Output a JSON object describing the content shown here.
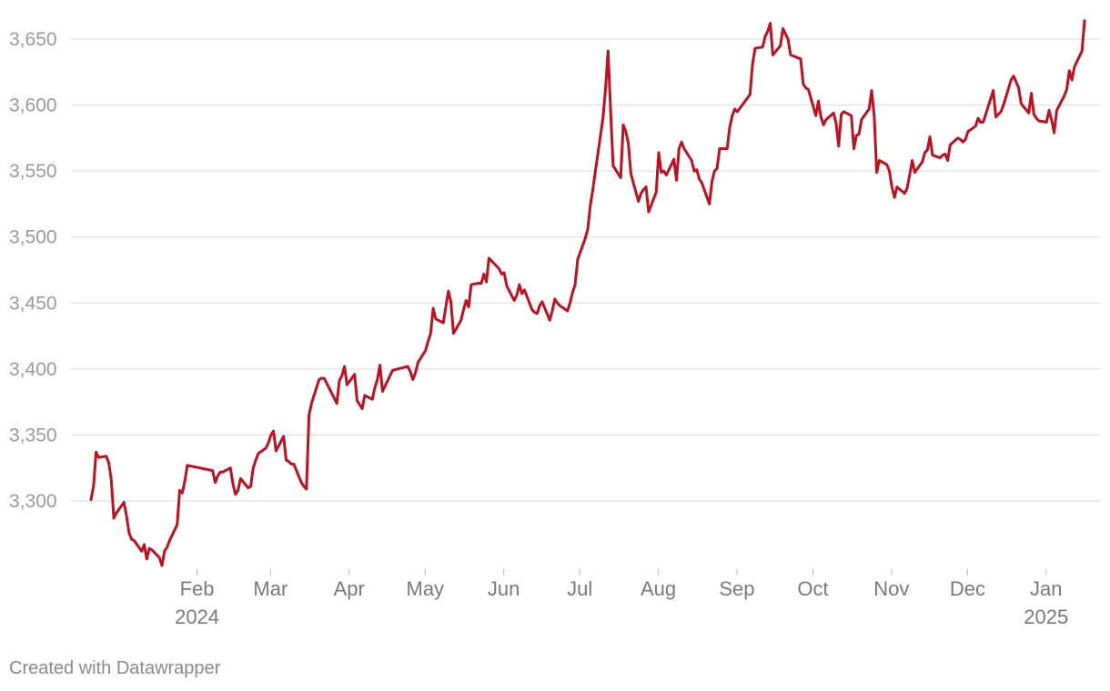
{
  "chart_data": {
    "type": "line",
    "title": "",
    "xlabel": "",
    "ylabel": "",
    "ylim": [
      3250,
      3665
    ],
    "y_ticks": [
      3300,
      3350,
      3400,
      3450,
      3500,
      3550,
      3600,
      3650
    ],
    "y_tick_labels": [
      "3,300",
      "3,350",
      "3,400",
      "3,450",
      "3,500",
      "3,550",
      "3,600",
      "3,650"
    ],
    "x_range": [
      "2024-01-11",
      "2025-01-24"
    ],
    "x_ticks": [
      {
        "date": "2024-02-01",
        "label": "Feb",
        "year": "2024"
      },
      {
        "date": "2024-03-01",
        "label": "Mar",
        "year": ""
      },
      {
        "date": "2024-04-01",
        "label": "Apr",
        "year": ""
      },
      {
        "date": "2024-05-01",
        "label": "May",
        "year": ""
      },
      {
        "date": "2024-06-01",
        "label": "Jun",
        "year": ""
      },
      {
        "date": "2024-07-01",
        "label": "Jul",
        "year": ""
      },
      {
        "date": "2024-08-01",
        "label": "Aug",
        "year": ""
      },
      {
        "date": "2024-09-01",
        "label": "Sep",
        "year": ""
      },
      {
        "date": "2024-10-01",
        "label": "Oct",
        "year": ""
      },
      {
        "date": "2024-11-01",
        "label": "Nov",
        "year": ""
      },
      {
        "date": "2024-12-01",
        "label": "Dec",
        "year": ""
      },
      {
        "date": "2025-01-01",
        "label": "Jan",
        "year": "2025"
      }
    ],
    "grid": true,
    "legend": "none",
    "series": [
      {
        "color": "#c0101f",
        "points": [
          [
            "2024-01-02",
            3301
          ],
          [
            "2024-01-03",
            3311
          ],
          [
            "2024-01-04",
            3337
          ],
          [
            "2024-01-05",
            3333
          ],
          [
            "2024-01-08",
            3334
          ],
          [
            "2024-01-09",
            3329
          ],
          [
            "2024-01-10",
            3316
          ],
          [
            "2024-01-11",
            3287
          ],
          [
            "2024-01-12",
            3291
          ],
          [
            "2024-01-15",
            3299
          ],
          [
            "2024-01-16",
            3289
          ],
          [
            "2024-01-17",
            3276
          ],
          [
            "2024-01-18",
            3271
          ],
          [
            "2024-01-19",
            3270
          ],
          [
            "2024-01-22",
            3262
          ],
          [
            "2024-01-23",
            3267
          ],
          [
            "2024-01-24",
            3256
          ],
          [
            "2024-01-25",
            3264
          ],
          [
            "2024-01-26",
            3263
          ],
          [
            "2024-01-29",
            3257
          ],
          [
            "2024-01-30",
            3251
          ],
          [
            "2024-01-31",
            3262
          ],
          [
            "2024-02-01",
            3265
          ],
          [
            "2024-02-02",
            3270
          ],
          [
            "2024-02-05",
            3282
          ],
          [
            "2024-02-06",
            3308
          ],
          [
            "2024-02-07",
            3306
          ],
          [
            "2024-02-08",
            3315
          ],
          [
            "2024-02-09",
            3327
          ],
          [
            "2024-02-19",
            3323
          ],
          [
            "2024-02-20",
            3314
          ],
          [
            "2024-02-21",
            3319
          ],
          [
            "2024-02-22",
            3322
          ],
          [
            "2024-02-23",
            3322
          ],
          [
            "2024-02-26",
            3325
          ],
          [
            "2024-02-27",
            3313
          ],
          [
            "2024-02-28",
            3305
          ],
          [
            "2024-02-29",
            3308
          ],
          [
            "2024-03-01",
            3317
          ],
          [
            "2024-03-04",
            3310
          ],
          [
            "2024-03-05",
            3311
          ],
          [
            "2024-03-06",
            3325
          ],
          [
            "2024-03-07",
            3331
          ],
          [
            "2024-03-08",
            3336
          ],
          [
            "2024-03-11",
            3340
          ],
          [
            "2024-03-12",
            3344
          ],
          [
            "2024-03-13",
            3350
          ],
          [
            "2024-03-14",
            3353
          ],
          [
            "2024-03-15",
            3338
          ],
          [
            "2024-03-18",
            3349
          ],
          [
            "2024-03-19",
            3331
          ],
          [
            "2024-03-20",
            3330
          ],
          [
            "2024-03-21",
            3328
          ],
          [
            "2024-03-22",
            3328
          ],
          [
            "2024-03-25",
            3314
          ],
          [
            "2024-03-26",
            3311
          ],
          [
            "2024-03-27",
            3309
          ],
          [
            "2024-03-28",
            3365
          ],
          [
            "2024-03-29",
            3374
          ],
          [
            "2024-04-01",
            3392
          ],
          [
            "2024-04-02",
            3393
          ],
          [
            "2024-04-03",
            3393
          ],
          [
            "2024-04-08",
            3374
          ],
          [
            "2024-04-09",
            3391
          ],
          [
            "2024-04-10",
            3395
          ],
          [
            "2024-04-11",
            3402
          ],
          [
            "2024-04-12",
            3388
          ],
          [
            "2024-04-15",
            3396
          ],
          [
            "2024-04-16",
            3376
          ],
          [
            "2024-04-17",
            3373
          ],
          [
            "2024-04-18",
            3370
          ],
          [
            "2024-04-19",
            3380
          ],
          [
            "2024-04-22",
            3377
          ],
          [
            "2024-04-23",
            3386
          ],
          [
            "2024-04-24",
            3392
          ],
          [
            "2024-04-25",
            3403
          ],
          [
            "2024-04-26",
            3383
          ],
          [
            "2024-04-29",
            3395
          ],
          [
            "2024-04-30",
            3399
          ],
          [
            "2024-05-06",
            3402
          ],
          [
            "2024-05-07",
            3398
          ],
          [
            "2024-05-08",
            3392
          ],
          [
            "2024-05-09",
            3397
          ],
          [
            "2024-05-10",
            3405
          ],
          [
            "2024-05-13",
            3414
          ],
          [
            "2024-05-14",
            3421
          ],
          [
            "2024-05-15",
            3427
          ],
          [
            "2024-05-16",
            3446
          ],
          [
            "2024-05-17",
            3438
          ],
          [
            "2024-05-20",
            3435
          ],
          [
            "2024-05-21",
            3447
          ],
          [
            "2024-05-22",
            3459
          ],
          [
            "2024-05-23",
            3451
          ],
          [
            "2024-05-24",
            3427
          ],
          [
            "2024-05-27",
            3437
          ],
          [
            "2024-05-28",
            3445
          ],
          [
            "2024-05-29",
            3452
          ],
          [
            "2024-05-30",
            3447
          ],
          [
            "2024-05-31",
            3464
          ],
          [
            "2024-06-03",
            3465
          ],
          [
            "2024-06-04",
            3465
          ],
          [
            "2024-06-05",
            3472
          ],
          [
            "2024-06-06",
            3466
          ],
          [
            "2024-06-07",
            3484
          ],
          [
            "2024-06-11",
            3476
          ],
          [
            "2024-06-12",
            3472
          ],
          [
            "2024-06-13",
            3473
          ],
          [
            "2024-06-14",
            3463
          ],
          [
            "2024-06-17",
            3452
          ],
          [
            "2024-06-18",
            3456
          ],
          [
            "2024-06-19",
            3464
          ],
          [
            "2024-06-20",
            3457
          ],
          [
            "2024-06-21",
            3460
          ],
          [
            "2024-06-24",
            3445
          ],
          [
            "2024-06-25",
            3443
          ],
          [
            "2024-06-26",
            3442
          ],
          [
            "2024-06-27",
            3448
          ],
          [
            "2024-06-28",
            3451
          ],
          [
            "2024-07-01",
            3437
          ],
          [
            "2024-07-02",
            3444
          ],
          [
            "2024-07-03",
            3453
          ],
          [
            "2024-07-04",
            3450
          ],
          [
            "2024-07-05",
            3448
          ],
          [
            "2024-07-08",
            3444
          ],
          [
            "2024-07-09",
            3450
          ],
          [
            "2024-07-10",
            3458
          ],
          [
            "2024-07-11",
            3464
          ],
          [
            "2024-07-12",
            3483
          ],
          [
            "2024-07-15",
            3499
          ],
          [
            "2024-07-16",
            3506
          ],
          [
            "2024-07-17",
            3524
          ],
          [
            "2024-07-18",
            3536
          ],
          [
            "2024-07-19",
            3550
          ],
          [
            "2024-07-22",
            3590
          ],
          [
            "2024-07-23",
            3612
          ],
          [
            "2024-07-24",
            3641
          ],
          [
            "2024-07-25",
            3596
          ],
          [
            "2024-07-26",
            3554
          ],
          [
            "2024-07-29",
            3545
          ],
          [
            "2024-07-30",
            3585
          ],
          [
            "2024-07-31",
            3580
          ],
          [
            "2024-08-01",
            3571
          ],
          [
            "2024-08-02",
            3548
          ],
          [
            "2024-08-05",
            3527
          ],
          [
            "2024-08-06",
            3533
          ],
          [
            "2024-08-07",
            3536
          ],
          [
            "2024-08-08",
            3538
          ],
          [
            "2024-08-09",
            3519
          ],
          [
            "2024-08-12",
            3534
          ],
          [
            "2024-08-13",
            3564
          ],
          [
            "2024-08-14",
            3549
          ],
          [
            "2024-08-15",
            3550
          ],
          [
            "2024-08-16",
            3547
          ],
          [
            "2024-08-19",
            3559
          ],
          [
            "2024-08-20",
            3543
          ],
          [
            "2024-08-21",
            3567
          ],
          [
            "2024-08-22",
            3572
          ],
          [
            "2024-08-23",
            3567
          ],
          [
            "2024-08-26",
            3558
          ],
          [
            "2024-08-27",
            3550
          ],
          [
            "2024-08-28",
            3551
          ],
          [
            "2024-08-29",
            3544
          ],
          [
            "2024-08-30",
            3541
          ],
          [
            "2024-09-02",
            3525
          ],
          [
            "2024-09-03",
            3542
          ],
          [
            "2024-09-04",
            3550
          ],
          [
            "2024-09-05",
            3552
          ],
          [
            "2024-09-06",
            3567
          ],
          [
            "2024-09-09",
            3567
          ],
          [
            "2024-09-10",
            3583
          ],
          [
            "2024-09-11",
            3592
          ],
          [
            "2024-09-12",
            3597
          ],
          [
            "2024-09-13",
            3595
          ],
          [
            "2024-09-18",
            3608
          ],
          [
            "2024-09-19",
            3631
          ],
          [
            "2024-09-20",
            3643
          ],
          [
            "2024-09-23",
            3644
          ],
          [
            "2024-09-24",
            3652
          ],
          [
            "2024-09-25",
            3656
          ],
          [
            "2024-09-26",
            3662
          ],
          [
            "2024-09-27",
            3638
          ],
          [
            "2024-09-30",
            3645
          ],
          [
            "2024-10-01",
            3658
          ],
          [
            "2024-10-02",
            3654
          ],
          [
            "2024-10-03",
            3650
          ],
          [
            "2024-10-04",
            3638
          ],
          [
            "2024-10-08",
            3635
          ],
          [
            "2024-10-09",
            3616
          ],
          [
            "2024-10-10",
            3613
          ],
          [
            "2024-10-11",
            3612
          ],
          [
            "2024-10-14",
            3592
          ],
          [
            "2024-10-15",
            3603
          ],
          [
            "2024-10-16",
            3591
          ],
          [
            "2024-10-17",
            3585
          ],
          [
            "2024-10-18",
            3589
          ],
          [
            "2024-10-21",
            3594
          ],
          [
            "2024-10-22",
            3586
          ],
          [
            "2024-10-23",
            3569
          ],
          [
            "2024-10-24",
            3593
          ],
          [
            "2024-10-25",
            3595
          ],
          [
            "2024-10-28",
            3592
          ],
          [
            "2024-10-29",
            3567
          ],
          [
            "2024-10-30",
            3577
          ],
          [
            "2024-10-31",
            3578
          ],
          [
            "2024-11-01",
            3589
          ],
          [
            "2024-11-04",
            3597
          ],
          [
            "2024-11-05",
            3611
          ],
          [
            "2024-11-06",
            3592
          ],
          [
            "2024-11-07",
            3549
          ],
          [
            "2024-11-08",
            3558
          ],
          [
            "2024-11-11",
            3555
          ],
          [
            "2024-11-12",
            3550
          ],
          [
            "2024-11-13",
            3538
          ],
          [
            "2024-11-14",
            3530
          ],
          [
            "2024-11-15",
            3538
          ],
          [
            "2024-11-18",
            3533
          ],
          [
            "2024-11-19",
            3537
          ],
          [
            "2024-11-20",
            3547
          ],
          [
            "2024-11-21",
            3558
          ],
          [
            "2024-11-22",
            3549
          ],
          [
            "2024-11-25",
            3557
          ],
          [
            "2024-11-26",
            3564
          ],
          [
            "2024-11-27",
            3566
          ],
          [
            "2024-11-28",
            3576
          ],
          [
            "2024-11-29",
            3562
          ],
          [
            "2024-12-02",
            3560
          ],
          [
            "2024-12-03",
            3562
          ],
          [
            "2024-12-04",
            3563
          ],
          [
            "2024-12-05",
            3558
          ],
          [
            "2024-12-06",
            3570
          ],
          [
            "2024-12-09",
            3575
          ],
          [
            "2024-12-10",
            3574
          ],
          [
            "2024-12-11",
            3572
          ],
          [
            "2024-12-12",
            3574
          ],
          [
            "2024-12-13",
            3580
          ],
          [
            "2024-12-16",
            3584
          ],
          [
            "2024-12-17",
            3590
          ],
          [
            "2024-12-18",
            3587
          ],
          [
            "2024-12-19",
            3587
          ],
          [
            "2024-12-20",
            3593
          ],
          [
            "2024-12-23",
            3611
          ],
          [
            "2024-12-24",
            3591
          ],
          [
            "2024-12-25",
            3593
          ],
          [
            "2024-12-26",
            3595
          ],
          [
            "2024-12-27",
            3600
          ],
          [
            "2024-12-30",
            3619
          ],
          [
            "2024-12-31",
            3622
          ],
          [
            "2025-01-02",
            3613
          ],
          [
            "2025-01-03",
            3601
          ],
          [
            "2025-01-06",
            3594
          ],
          [
            "2025-01-07",
            3609
          ],
          [
            "2025-01-08",
            3593
          ],
          [
            "2025-01-09",
            3590
          ],
          [
            "2025-01-10",
            3588
          ],
          [
            "2025-01-13",
            3587
          ],
          [
            "2025-01-14",
            3596
          ],
          [
            "2025-01-15",
            3589
          ],
          [
            "2025-01-16",
            3579
          ],
          [
            "2025-01-17",
            3596
          ],
          [
            "2025-01-20",
            3607
          ],
          [
            "2025-01-21",
            3612
          ],
          [
            "2025-01-22",
            3626
          ],
          [
            "2025-01-23",
            3619
          ],
          [
            "2025-01-24",
            3629
          ],
          [
            "2025-01-27",
            3641
          ],
          [
            "2025-01-28",
            3664
          ]
        ]
      }
    ]
  },
  "footer": {
    "credit": "Created with Datawrapper"
  }
}
